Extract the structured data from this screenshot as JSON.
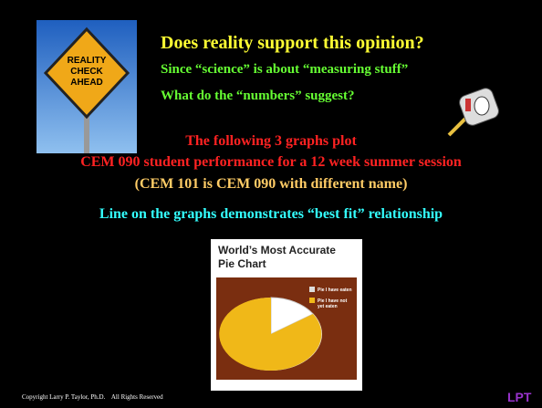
{
  "slide": {
    "title": "Does reality support this opinion?",
    "subtitle_lines": [
      "Since “science” is about “measuring stuff”",
      "What do the “numbers” suggest?"
    ],
    "red_lines": [
      "The following 3 graphs plot",
      "CEM 090 student performance for a 12 week summer session"
    ],
    "note": "(CEM 101 is CEM 090 with different name)",
    "cyan_line": "Line on the graphs demonstrates “best fit” relationship",
    "sign": [
      "REALITY",
      "CHECK",
      "AHEAD"
    ],
    "pie_image": {
      "title_lines": [
        "World’s Most Accurate",
        "Pie Chart"
      ],
      "legend": [
        "Pie I have eaten",
        "Pie I have not",
        "yet eaten"
      ]
    },
    "footer": "Copyright Larry P. Taylor, Ph.D.    All Rights Reserved",
    "logo": "LPT"
  }
}
